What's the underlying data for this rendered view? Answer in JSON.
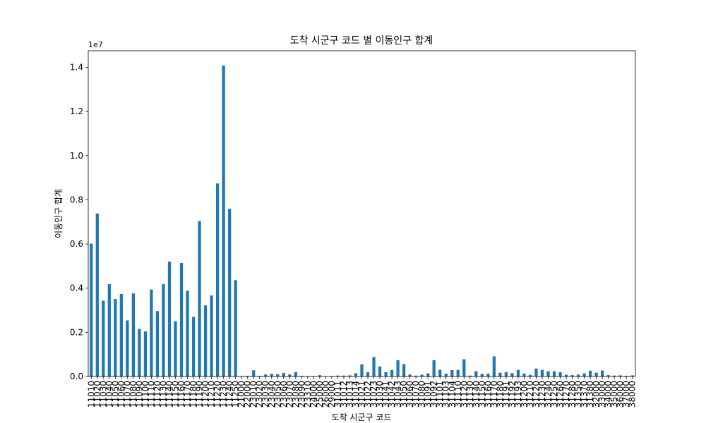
{
  "chart_data": {
    "type": "bar",
    "title": "도착 시군구 코드 별 이동인구 합계",
    "xlabel": "도착 시군구 코드",
    "ylabel": "이동인구 합계",
    "y_offset_label": "1e7",
    "ylim": [
      0,
      14750000
    ],
    "yticks": [
      0,
      2000000,
      4000000,
      6000000,
      8000000,
      10000000,
      12000000,
      14000000
    ],
    "ytick_labels": [
      "0.0",
      "0.2",
      "0.4",
      "0.6",
      "0.8",
      "1.0",
      "1.2",
      "1.4"
    ],
    "bar_color": "#1f77b4",
    "grid": false,
    "categories": [
      "11010",
      "11020",
      "11030",
      "11040",
      "11050",
      "11060",
      "11070",
      "11080",
      "11090",
      "11100",
      "11110",
      "11120",
      "11130",
      "11140",
      "11150",
      "11160",
      "11170",
      "11180",
      "11190",
      "11200",
      "11210",
      "11220",
      "11230",
      "11240",
      "11250",
      "21000",
      "22000",
      "23010",
      "23020",
      "23030",
      "23040",
      "23050",
      "23060",
      "23070",
      "23080",
      "23090",
      "23310",
      "24000",
      "25000",
      "26000",
      "29000",
      "31011",
      "31012",
      "31013",
      "31014",
      "31021",
      "31022",
      "31023",
      "31030",
      "31041",
      "31042",
      "31043",
      "31050",
      "31060",
      "31070",
      "31080",
      "31091",
      "31092",
      "31101",
      "31103",
      "31104",
      "31110",
      "31120",
      "31130",
      "31140",
      "31150",
      "31160",
      "31170",
      "31180",
      "31191",
      "31192",
      "31193",
      "31200",
      "31210",
      "31220",
      "31230",
      "31240",
      "31250",
      "31260",
      "31270",
      "31280",
      "31350",
      "31370",
      "31380",
      "32000",
      "33000",
      "34000",
      "35000",
      "36000",
      "37000",
      "38000"
    ],
    "values": [
      6020000,
      7380000,
      3430000,
      4180000,
      3510000,
      3740000,
      2540000,
      3760000,
      2150000,
      2040000,
      3940000,
      2960000,
      4180000,
      5200000,
      2500000,
      5140000,
      3880000,
      2700000,
      7040000,
      3220000,
      3670000,
      8740000,
      14080000,
      7590000,
      4360000,
      20000,
      30000,
      280000,
      30000,
      90000,
      120000,
      100000,
      160000,
      90000,
      200000,
      30000,
      20000,
      20000,
      60000,
      20000,
      20000,
      40000,
      40000,
      50000,
      150000,
      550000,
      190000,
      880000,
      450000,
      200000,
      290000,
      740000,
      560000,
      90000,
      40000,
      80000,
      140000,
      740000,
      300000,
      130000,
      290000,
      300000,
      780000,
      40000,
      240000,
      120000,
      130000,
      910000,
      170000,
      200000,
      150000,
      300000,
      130000,
      70000,
      360000,
      300000,
      240000,
      240000,
      190000,
      80000,
      60000,
      90000,
      140000,
      260000,
      170000,
      270000,
      60000,
      40000,
      50000,
      30000,
      50000
    ]
  }
}
